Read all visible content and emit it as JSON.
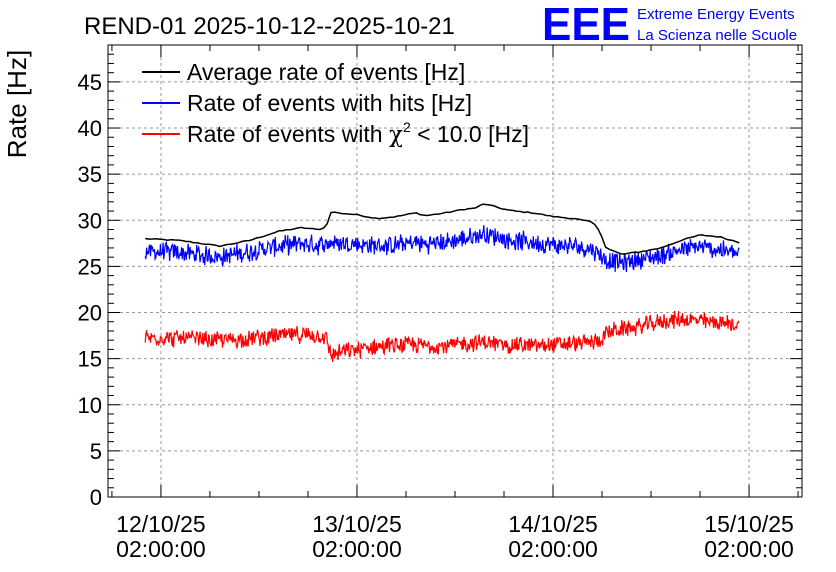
{
  "chart_data": {
    "type": "line",
    "title": "REND-01 2025-10-12--2025-10-21",
    "ylabel": "Rate [Hz]",
    "xlabel": "",
    "ylim": [
      0,
      49
    ],
    "yticks": [
      0,
      5,
      10,
      15,
      20,
      25,
      30,
      35,
      40,
      45
    ],
    "ytick_labels": [
      "0",
      "5",
      "10",
      "15",
      "20",
      "25",
      "30",
      "35",
      "40",
      "45"
    ],
    "xlim": [
      -0.27,
      3.27
    ],
    "x_units": "days since 12/10/25 02:00:00",
    "xticks": [
      0,
      1,
      2,
      3
    ],
    "xtick_labels": [
      {
        "date": "12/10/25",
        "time": "02:00:00"
      },
      {
        "date": "13/10/25",
        "time": "02:00:00"
      },
      {
        "date": "14/10/25",
        "time": "02:00:00"
      },
      {
        "date": "15/10/25",
        "time": "02:00:00"
      }
    ],
    "grid": true,
    "legend_position": "top-left",
    "series": [
      {
        "name": "Average rate of events [Hz]",
        "color": "#000000",
        "x": [
          -0.08,
          0.1,
          0.3,
          0.45,
          0.6,
          0.72,
          0.8,
          0.84,
          0.87,
          0.9,
          1.0,
          1.1,
          1.2,
          1.3,
          1.35,
          1.45,
          1.55,
          1.6,
          1.65,
          1.7,
          1.75,
          1.8,
          1.9,
          2.0,
          2.1,
          2.2,
          2.24,
          2.27,
          2.35,
          2.45,
          2.55,
          2.65,
          2.75,
          2.85,
          2.95
        ],
        "y": [
          28.0,
          27.8,
          27.2,
          27.8,
          28.8,
          29.2,
          29.0,
          29.2,
          31.0,
          30.8,
          30.6,
          30.2,
          30.4,
          30.8,
          30.5,
          30.8,
          31.2,
          31.3,
          31.8,
          31.5,
          31.2,
          31.0,
          30.8,
          30.4,
          30.2,
          29.8,
          28.8,
          27.0,
          26.3,
          26.6,
          27.0,
          27.8,
          28.4,
          28.2,
          27.6
        ]
      },
      {
        "name": "Rate of events with hits [Hz]",
        "color": "#0000ff",
        "x": [
          -0.08,
          0.1,
          0.3,
          0.45,
          0.6,
          0.72,
          0.8,
          0.84,
          0.87,
          0.9,
          1.0,
          1.1,
          1.2,
          1.3,
          1.35,
          1.45,
          1.55,
          1.6,
          1.65,
          1.7,
          1.75,
          1.8,
          1.9,
          2.0,
          2.1,
          2.2,
          2.24,
          2.27,
          2.35,
          2.45,
          2.55,
          2.65,
          2.75,
          2.85,
          2.95
        ],
        "y": [
          26.6,
          26.5,
          26.0,
          26.6,
          27.2,
          27.5,
          27.3,
          27.4,
          27.6,
          27.5,
          27.4,
          27.2,
          27.3,
          27.6,
          27.4,
          27.6,
          28.0,
          28.2,
          28.6,
          28.3,
          28.0,
          27.8,
          27.6,
          27.3,
          27.2,
          26.9,
          26.3,
          25.6,
          25.4,
          25.8,
          26.2,
          26.8,
          27.1,
          26.8,
          26.3
        ]
      },
      {
        "name": "Rate of events with χ² < 10.0 [Hz]",
        "color": "#ff0000",
        "x": [
          -0.08,
          0.1,
          0.3,
          0.45,
          0.6,
          0.72,
          0.8,
          0.84,
          0.87,
          0.9,
          1.0,
          1.1,
          1.2,
          1.3,
          1.35,
          1.45,
          1.55,
          1.6,
          1.65,
          1.7,
          1.75,
          1.8,
          1.9,
          2.0,
          2.1,
          2.2,
          2.24,
          2.27,
          2.35,
          2.45,
          2.55,
          2.65,
          2.75,
          2.85,
          2.95
        ],
        "y": [
          17.3,
          17.2,
          17.0,
          17.2,
          17.5,
          17.6,
          17.5,
          17.3,
          15.4,
          15.6,
          16.0,
          16.3,
          16.4,
          16.5,
          16.4,
          16.4,
          16.6,
          16.7,
          16.8,
          16.6,
          16.5,
          16.5,
          16.4,
          16.5,
          16.6,
          16.8,
          17.0,
          17.8,
          18.2,
          18.5,
          19.0,
          19.3,
          19.1,
          18.9,
          18.6
        ]
      }
    ]
  },
  "legend": {
    "avg": "Average rate of events [Hz]",
    "hits": "Rate of events with hits [Hz]",
    "chi_prefix": "Rate of events with ",
    "chi_symbol": "χ",
    "chi_sup": "2",
    "chi_suffix": " < 10.0 [Hz]"
  },
  "logo": {
    "text": "EEE",
    "line1": "Extreme Energy Events",
    "line2": "La Scienza nelle Scuole",
    "color": "#0000ff"
  }
}
